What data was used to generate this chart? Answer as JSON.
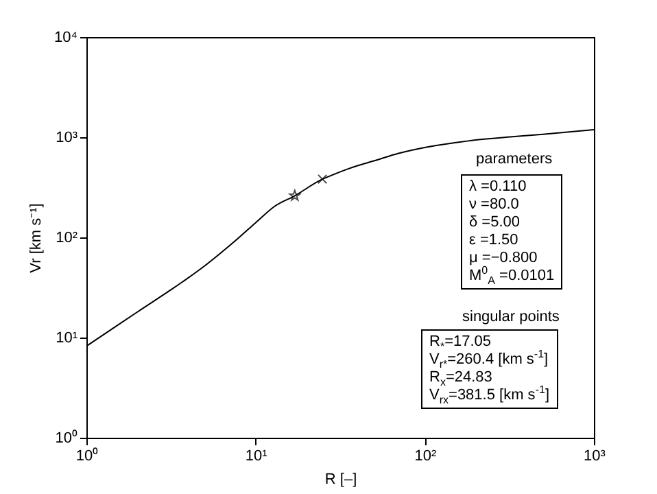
{
  "chart_data": {
    "type": "line",
    "xlabel": "R [–]",
    "ylabel": "Vr [km s⁻¹]",
    "log": "xy",
    "grid": false,
    "legend": false,
    "xlim": [
      1,
      1000
    ],
    "xticks": [
      {
        "value": 1,
        "label": "10⁰"
      },
      {
        "value": 10,
        "label": "10¹"
      },
      {
        "value": 100,
        "label": "10²"
      },
      {
        "value": 1000,
        "label": "10³"
      }
    ],
    "ylim": [
      1,
      10000
    ],
    "yticks": [
      {
        "value": 1,
        "label": "10⁰"
      },
      {
        "value": 10,
        "label": "10¹"
      },
      {
        "value": 100,
        "label": "10²"
      },
      {
        "value": 1000,
        "label": "10³"
      },
      {
        "value": 10000,
        "label": "10⁴"
      }
    ],
    "series": [
      {
        "color": "#000000",
        "x": [
          1,
          1.5,
          2,
          3.7,
          5,
          6.1,
          8,
          10,
          13,
          17.05,
          24.83,
          27,
          40,
          50,
          70,
          100,
          150,
          200,
          330,
          500,
          1000
        ],
        "values": [
          8.2,
          13,
          18,
          36,
          52,
          68,
          100,
          140,
          205,
          260.4,
          381.5,
          405,
          520,
          580,
          690,
          790,
          880,
          940,
          1010,
          1070,
          1190
        ]
      },
      {
        "type": "scatter",
        "color": "#000000",
        "marker": "star",
        "x": [
          17.05
        ],
        "values": [
          260.4
        ]
      },
      {
        "type": "scatter",
        "color": "#000000",
        "marker": "cross",
        "x": [
          24.83
        ],
        "values": [
          381.5
        ]
      }
    ],
    "annotations": [
      "parameters",
      "λ =0.110",
      "ν =80.0",
      "δ =5.00",
      "ε =1.50",
      "μ =−0.800",
      "M$^{0}$$_{A}$ =0.0101",
      "singular points",
      "R$_{*}$=17.05",
      "V$_{r*}$=260.4 [km s$^{-1}$]",
      "R$_{x}$=24.83",
      "V$_{rx}$=381.5 [km s$^{-1}$]"
    ]
  }
}
